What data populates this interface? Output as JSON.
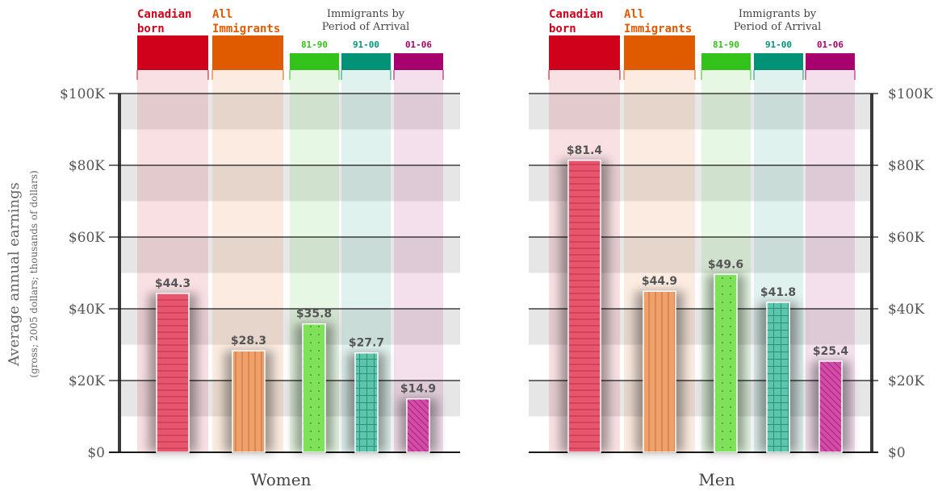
{
  "chart_data": {
    "type": "bar",
    "ylabel": "Average annual earnings",
    "ylabel_sub": "(gross; 2005 dollars; thousands of dollars)",
    "ylim": [
      0,
      100
    ],
    "yticks": [
      "$0",
      "$20K",
      "$40K",
      "$60K",
      "$80K",
      "$100K"
    ],
    "group_header": "Immigrants by Period of Arrival",
    "categories": [
      {
        "label": "Canadian born",
        "color": "#d0021b"
      },
      {
        "label": "All Immigrants",
        "color": "#e05a00"
      },
      {
        "label": "81-90",
        "color": "#33c21a"
      },
      {
        "label": "91-00",
        "color": "#009377"
      },
      {
        "label": "01-06",
        "color": "#a8006e"
      }
    ],
    "panels": [
      {
        "name": "Women",
        "values": [
          44.3,
          28.3,
          35.8,
          27.7,
          14.9
        ],
        "value_labels": [
          "$44.3",
          "$28.3",
          "$35.8",
          "$27.7",
          "$14.9"
        ]
      },
      {
        "name": "Men",
        "values": [
          81.4,
          44.9,
          49.6,
          41.8,
          25.4
        ],
        "value_labels": [
          "$81.4",
          "$44.9",
          "$49.6",
          "$41.8",
          "$25.4"
        ]
      }
    ],
    "bar_colors": [
      "#e8566e",
      "#f0a06a",
      "#7fe05a",
      "#5cc6ad",
      "#d64aa8"
    ],
    "grid": true
  }
}
